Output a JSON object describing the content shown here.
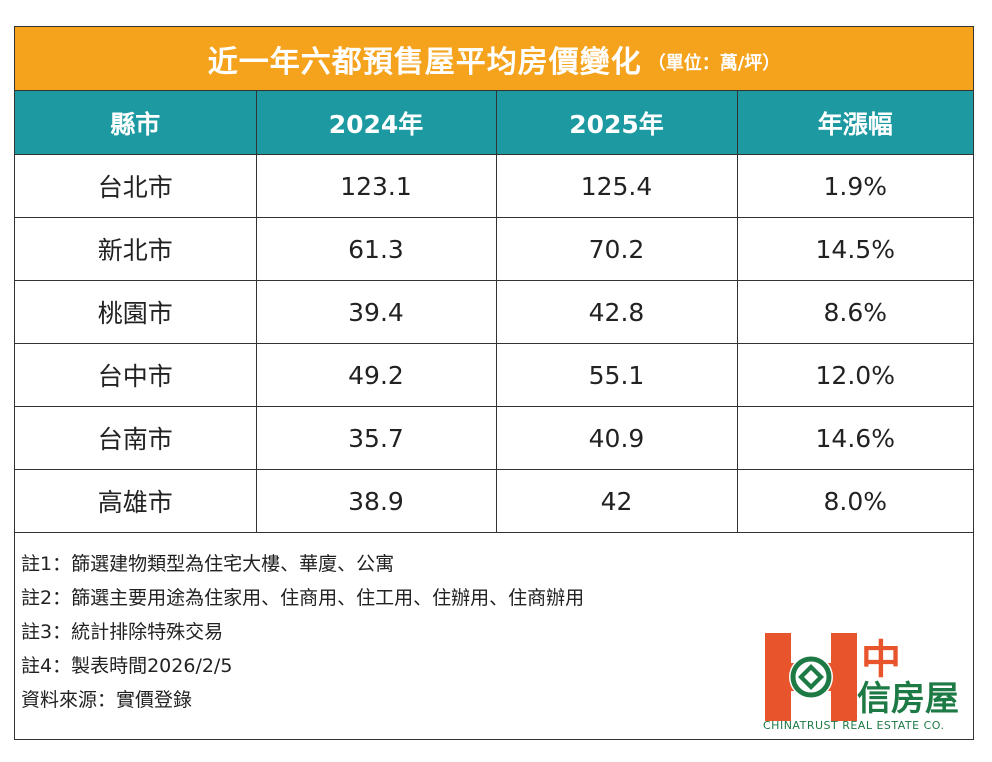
{
  "header": {
    "title": "近一年六都預售屋平均房價變化",
    "unit": "（單位：萬/坪）"
  },
  "table": {
    "columns": [
      "縣市",
      "2024年",
      "2025年",
      "年漲幅"
    ],
    "rows": [
      [
        "台北市",
        "123.1",
        "125.4",
        "1.9%"
      ],
      [
        "新北市",
        "61.3",
        "70.2",
        "14.5%"
      ],
      [
        "桃園市",
        "39.4",
        "42.8",
        "8.6%"
      ],
      [
        "台中市",
        "49.2",
        "55.1",
        "12.0%"
      ],
      [
        "台南市",
        "35.7",
        "40.9",
        "14.6%"
      ],
      [
        "高雄市",
        "38.9",
        "42",
        "8.0%"
      ]
    ]
  },
  "notes": [
    "註1：篩選建物類型為住宅大樓、華廈、公寓",
    "註2：篩選主要用途為住家用、住商用、住工用、住辦用、住商辦用",
    "註3：統計排除特殊交易",
    "註4：製表時間2026/2/5",
    "資料來源：實價登錄"
  ],
  "logo": {
    "name_top": "中",
    "name_bottom": "信房屋",
    "english": "CHINATRUST REAL ESTATE CO."
  }
}
